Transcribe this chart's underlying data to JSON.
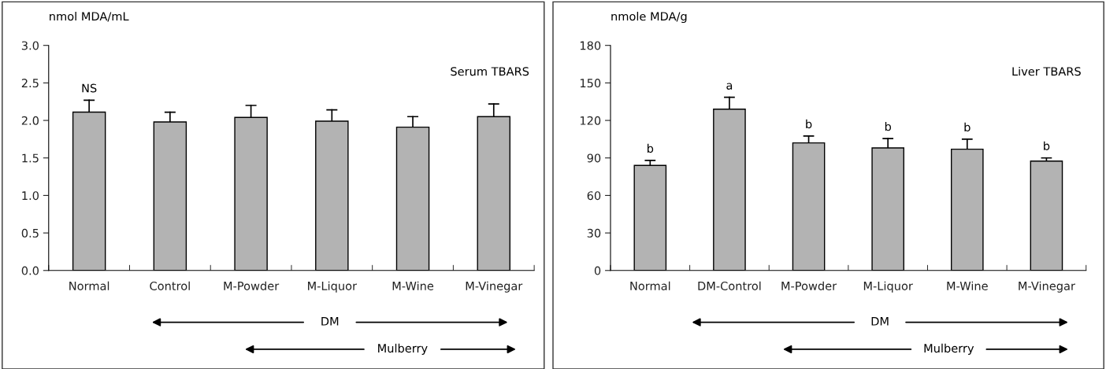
{
  "chart_data": [
    {
      "type": "bar",
      "ylabel": "nmol MDA/mL",
      "categories": [
        "Normal",
        "Control",
        "M-Powder",
        "M-Liquor",
        "M-Wine",
        "M-Vinegar"
      ],
      "values": [
        2.11,
        1.98,
        2.04,
        1.99,
        1.91,
        2.05
      ],
      "color": "#b3b3b3",
      "errors": [
        [
          2.11,
          2.27
        ],
        [
          1.98,
          2.11
        ],
        [
          2.04,
          2.2
        ],
        [
          1.99,
          2.14
        ],
        [
          1.91,
          2.05
        ],
        [
          2.05,
          2.22
        ]
      ],
      "ylim": [
        0,
        3
      ],
      "yticks": [
        {
          "value": 0,
          "label": "0.0"
        },
        {
          "value": 0.5,
          "label": "0.5"
        },
        {
          "value": 1,
          "label": "1.0"
        },
        {
          "value": 1.5,
          "label": "1.5"
        },
        {
          "value": 2,
          "label": "2.0"
        },
        {
          "value": 2.5,
          "label": "2.5"
        },
        {
          "value": 3,
          "label": "3.0"
        }
      ],
      "grid": false,
      "annotations": [
        "Serum TBARS",
        {
          "text": "NS",
          "x": "Normal",
          "y": 2.27
        },
        "DM",
        "Mulberry"
      ]
    },
    {
      "type": "bar",
      "ylabel": "nmole MDA/g",
      "categories": [
        "Normal",
        "DM-Control",
        "M-Powder",
        "M-Liquor",
        "M-Wine",
        "M-Vinegar"
      ],
      "values": [
        84,
        129,
        102,
        98,
        97,
        87.5
      ],
      "color": "#b3b3b3",
      "errors": [
        [
          84,
          88
        ],
        [
          129,
          138.5
        ],
        [
          102,
          107.5
        ],
        [
          98,
          105.5
        ],
        [
          97,
          105
        ],
        [
          87.5,
          90
        ]
      ],
      "ylim": [
        0,
        180
      ],
      "yticks": [
        0,
        30,
        60,
        90,
        120,
        150,
        180
      ],
      "grid": false,
      "annotations": [
        "Liver TBARS",
        {
          "text": "b",
          "x": "Normal",
          "y": 88
        },
        {
          "text": "a",
          "x": "DM-Control",
          "y": 138.5
        },
        {
          "text": "b",
          "x": "M-Powder",
          "y": 107.5
        },
        {
          "text": "b",
          "x": "M-Liquor",
          "y": 105.5
        },
        {
          "text": "b",
          "x": "M-Wine",
          "y": 105
        },
        {
          "text": "b",
          "x": "M-Vinegar",
          "y": 90
        },
        "DM",
        "Mulberry"
      ]
    }
  ]
}
